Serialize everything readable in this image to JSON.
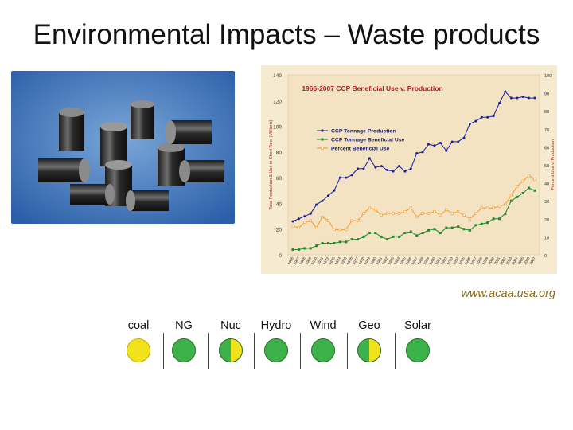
{
  "slide": {
    "title": "Environmental Impacts – Waste products",
    "source": "www.acaa.usa.org",
    "photo_icon": "coal-ash-cylinders-photo"
  },
  "ratings": [
    {
      "label": "coal",
      "fill": "yellow"
    },
    {
      "label": "NG",
      "fill": "green"
    },
    {
      "label": "Nuc",
      "fill": "green-yellow-half"
    },
    {
      "label": "Hydro",
      "fill": "green"
    },
    {
      "label": "Wind",
      "fill": "green"
    },
    {
      "label": "Geo",
      "fill": "green-yellow-half"
    },
    {
      "label": "Solar",
      "fill": "green"
    }
  ],
  "colors": {
    "green": "#3cb34a",
    "yellow": "#f2e21c",
    "production": "#1a1f9e",
    "beneficial_use": "#1e8a2a",
    "percent_use": "#f29a2e",
    "chart_bg": "#f6ead0"
  },
  "chart_data": {
    "type": "line",
    "title": "1966-2007 CCP Beneficial Use v. Production",
    "ylabel": "Total Production & Use in Short Tons (Millions)",
    "y2label": "Percent Use v. Production",
    "ylim": [
      0,
      140
    ],
    "y2lim": [
      0,
      100
    ],
    "yticks": [
      0,
      20,
      40,
      60,
      80,
      100,
      120,
      140
    ],
    "y2ticks": [
      0,
      10,
      20,
      30,
      40,
      50,
      60,
      70,
      80,
      90,
      100
    ],
    "legend_position": "top-left",
    "grid": false,
    "x": [
      1966,
      1967,
      1968,
      1969,
      1970,
      1971,
      1972,
      1973,
      1974,
      1975,
      1976,
      1977,
      1978,
      1979,
      1980,
      1981,
      1982,
      1983,
      1984,
      1985,
      1986,
      1987,
      1988,
      1989,
      1990,
      1991,
      1992,
      1993,
      1994,
      1995,
      1996,
      1997,
      1998,
      1999,
      2000,
      2001,
      2002,
      2003,
      2004,
      2005,
      2006,
      2007
    ],
    "xticks": [
      "1966",
      "1967",
      "1968",
      "1969",
      "1970",
      "1971",
      "1972",
      "1973",
      "1974",
      "1975",
      "1976",
      "1977",
      "1978",
      "1979",
      "1980",
      "1981",
      "1982",
      "1983",
      "1984",
      "1985",
      "1986",
      "1987",
      "1988",
      "1989",
      "1990",
      "1991",
      "1992",
      "1993",
      "1994",
      "1995",
      "1996",
      "1997",
      "1998",
      "1999",
      "2000",
      "2001",
      "2002",
      "2003",
      "2004",
      "2005",
      "2006",
      "2007"
    ],
    "series": [
      {
        "name": "CCP Tonnage Production",
        "axis": "left",
        "values": [
          26,
          28,
          30,
          32,
          39,
          42,
          46,
          50,
          60,
          60,
          62,
          67,
          67,
          75,
          68,
          69,
          66,
          65,
          69,
          65,
          67,
          79,
          80,
          86,
          85,
          87,
          81,
          88,
          88,
          91,
          102,
          104,
          107,
          107,
          108,
          118,
          127,
          122,
          122,
          123,
          122,
          122
        ]
      },
      {
        "name": "CCP Tonnage Beneficial Use",
        "axis": "left",
        "values": [
          4,
          4,
          5,
          5,
          7,
          9,
          9,
          9,
          10,
          10,
          12,
          12,
          14,
          17,
          17,
          14,
          12,
          14,
          14,
          17,
          18,
          15,
          17,
          19,
          20,
          17,
          21,
          21,
          22,
          20,
          19,
          23,
          24,
          25,
          28,
          28,
          32,
          42,
          45,
          48,
          52,
          50
        ]
      },
      {
        "name": "Percent Beneficial Use",
        "axis": "right",
        "values": [
          16,
          15,
          18,
          19,
          15,
          21,
          19,
          14,
          14,
          14,
          19,
          19,
          23,
          26,
          25,
          22,
          23,
          23,
          23,
          24,
          26,
          21,
          23,
          23,
          24,
          22,
          25,
          23,
          24,
          22,
          20,
          23,
          26,
          26,
          26,
          27,
          28,
          33,
          38,
          41,
          44,
          42
        ]
      }
    ]
  }
}
